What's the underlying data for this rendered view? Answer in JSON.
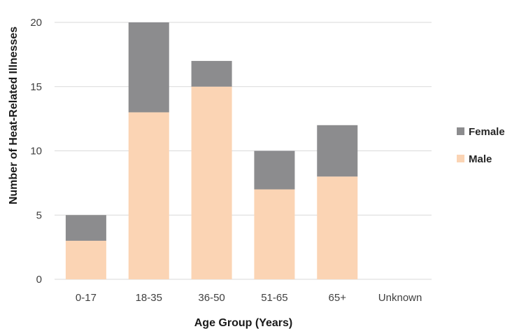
{
  "chart_data": {
    "type": "bar",
    "stacked": true,
    "categories": [
      "0-17",
      "18-35",
      "36-50",
      "51-65",
      "65+",
      "Unknown"
    ],
    "series": [
      {
        "name": "Male",
        "values": [
          3,
          13,
          15,
          7,
          8,
          0
        ],
        "color": "#fbd4b4"
      },
      {
        "name": "Female",
        "values": [
          2,
          7,
          2,
          3,
          4,
          0
        ],
        "color": "#8c8c8e"
      }
    ],
    "title": "",
    "xlabel": "Age Group (Years)",
    "ylabel": "Number of Heat-Related Illnesses",
    "ylim": [
      0,
      20
    ],
    "yticks": [
      0,
      5,
      10,
      15,
      20
    ],
    "grid": true,
    "legend_position": "right",
    "legend_order": [
      "Female",
      "Male"
    ]
  }
}
